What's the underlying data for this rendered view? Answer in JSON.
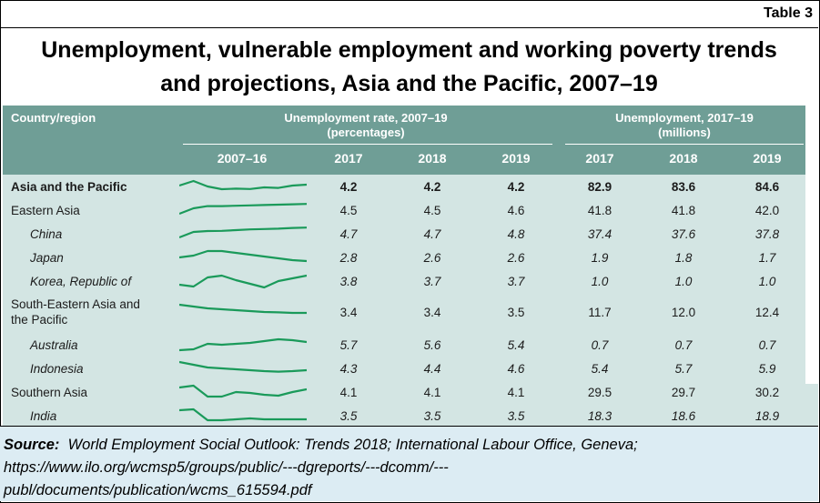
{
  "table_label": "Table 3",
  "title_line1": "Unemployment, vulnerable employment and working poverty trends",
  "title_line2": "and projections, Asia and the Pacific, 2007–19",
  "headers": {
    "country_region": "Country/region",
    "unemp_rate": "Unemployment rate, 2007–19",
    "unemp_rate_unit": "(percentages)",
    "unemp_millions": "Unemployment, 2017–19",
    "unemp_millions_unit": "(millions)",
    "trend": "2007–16",
    "y2017a": "2017",
    "y2018a": "2018",
    "y2019a": "2019",
    "y2017b": "2017",
    "y2018b": "2018",
    "y2019b": "2019"
  },
  "rows": [
    {
      "name": "Asia and the Pacific",
      "r17": "4.2",
      "r18": "4.2",
      "r19": "4.2",
      "m17": "82.9",
      "m18": "83.6",
      "m19": "84.6",
      "trend": [
        0.55,
        0.8,
        0.5,
        0.35,
        0.38,
        0.36,
        0.45,
        0.42,
        0.55,
        0.6
      ]
    },
    {
      "name": "Eastern Asia",
      "r17": "4.5",
      "r18": "4.5",
      "r19": "4.6",
      "m17": "41.8",
      "m18": "41.8",
      "m19": "42.0",
      "trend": [
        0.3,
        0.6,
        0.72,
        0.72,
        0.74,
        0.76,
        0.78,
        0.8,
        0.82,
        0.84
      ]
    },
    {
      "name": "China",
      "r17": "4.7",
      "r18": "4.7",
      "r19": "4.8",
      "m17": "37.4",
      "m18": "37.6",
      "m19": "37.8",
      "trend": [
        0.3,
        0.6,
        0.65,
        0.66,
        0.7,
        0.74,
        0.76,
        0.78,
        0.82,
        0.84
      ]
    },
    {
      "name": "Japan",
      "r17": "2.8",
      "r18": "2.6",
      "r19": "2.6",
      "m17": "1.9",
      "m18": "1.8",
      "m19": "1.7",
      "trend": [
        0.5,
        0.6,
        0.85,
        0.85,
        0.75,
        0.65,
        0.55,
        0.45,
        0.35,
        0.3
      ]
    },
    {
      "name": "Korea, Republic of",
      "r17": "3.8",
      "r18": "3.7",
      "r19": "3.7",
      "m17": "1.0",
      "m18": "1.0",
      "m19": "1.0",
      "trend": [
        0.3,
        0.2,
        0.7,
        0.8,
        0.55,
        0.35,
        0.15,
        0.5,
        0.65,
        0.8
      ]
    },
    {
      "name": "South-Eastern Asia and the Pacific",
      "r17": "3.4",
      "r18": "3.4",
      "r19": "3.5",
      "m17": "11.7",
      "m18": "12.0",
      "m19": "12.4",
      "trend": [
        0.8,
        0.7,
        0.6,
        0.55,
        0.5,
        0.45,
        0.4,
        0.38,
        0.35,
        0.35
      ]
    },
    {
      "name": "Australia",
      "r17": "5.7",
      "r18": "5.6",
      "r19": "5.4",
      "m17": "0.7",
      "m18": "0.7",
      "m19": "0.7",
      "trend": [
        0.2,
        0.25,
        0.55,
        0.5,
        0.55,
        0.6,
        0.7,
        0.8,
        0.75,
        0.65
      ]
    },
    {
      "name": "Indonesia",
      "r17": "4.3",
      "r18": "4.4",
      "r19": "4.6",
      "m17": "5.4",
      "m18": "5.7",
      "m19": "5.9",
      "trend": [
        0.85,
        0.7,
        0.55,
        0.5,
        0.45,
        0.4,
        0.35,
        0.32,
        0.35,
        0.4
      ]
    },
    {
      "name": "Southern Asia",
      "r17": "4.1",
      "r18": "4.1",
      "r19": "4.1",
      "m17": "29.5",
      "m18": "29.7",
      "m19": "30.2",
      "trend": [
        0.75,
        0.85,
        0.25,
        0.25,
        0.5,
        0.45,
        0.35,
        0.3,
        0.5,
        0.65
      ]
    },
    {
      "name": "India",
      "r17": "3.5",
      "r18": "3.5",
      "r19": "3.5",
      "m17": "18.3",
      "m18": "18.6",
      "m19": "18.9",
      "trend": [
        0.8,
        0.85,
        0.25,
        0.25,
        0.3,
        0.35,
        0.3,
        0.3,
        0.3,
        0.3
      ]
    }
  ],
  "source_label": "Source:",
  "source_text": "World Employment Social Outlook: Trends 2018; International Labour Office, Geneva;",
  "source_url_1": "https://www.ilo.org/wcmsp5/groups/public/---dgreports/---dcomm/---",
  "source_url_2": "publ/documents/publication/wcms_615594.pdf",
  "colors": {
    "header_bg": "#6f9e96",
    "body_bg": "#d3e5e3",
    "spark": "#1a9a5a",
    "source_bg": "#dcecf3"
  }
}
